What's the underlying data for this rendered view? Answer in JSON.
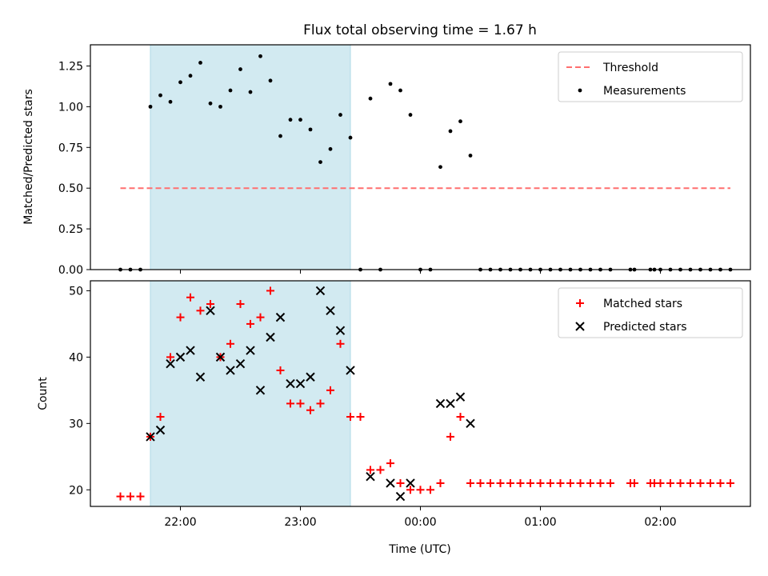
{
  "chart_data": [
    {
      "type": "scatter",
      "title": "Flux total observing time = 1.67 h",
      "xlabel": "",
      "ylabel": "Matched/Predicted stars",
      "ylim": [
        0,
        1.38
      ],
      "xlim": [
        "21:15",
        "02:45"
      ],
      "yticks": [
        "0.00",
        "0.25",
        "0.50",
        "0.75",
        "1.00",
        "1.25"
      ],
      "ytick_values": [
        0,
        0.25,
        0.5,
        0.75,
        1.0,
        1.25
      ],
      "shaded_interval": [
        "21:45",
        "23:25"
      ],
      "shade_color": "#add8e6",
      "legend": "top-right",
      "threshold": {
        "name": "Threshold",
        "value": 0.5,
        "x": [
          "21:30",
          "02:35"
        ],
        "color": "#ff6f6f"
      },
      "series": [
        {
          "name": "Measurements",
          "color": "#000000",
          "points": [
            [
              "21:30",
              0
            ],
            [
              "21:35",
              0
            ],
            [
              "21:40",
              0
            ],
            [
              "21:45",
              1.0
            ],
            [
              "21:50",
              1.07
            ],
            [
              "21:55",
              1.03
            ],
            [
              "22:00",
              1.15
            ],
            [
              "22:05",
              1.19
            ],
            [
              "22:10",
              1.27
            ],
            [
              "22:15",
              1.02
            ],
            [
              "22:20",
              1.0
            ],
            [
              "22:25",
              1.1
            ],
            [
              "22:30",
              1.23
            ],
            [
              "22:35",
              1.09
            ],
            [
              "22:40",
              1.31
            ],
            [
              "22:45",
              1.16
            ],
            [
              "22:50",
              0.82
            ],
            [
              "22:55",
              0.92
            ],
            [
              "23:00",
              0.92
            ],
            [
              "23:05",
              0.86
            ],
            [
              "23:10",
              0.66
            ],
            [
              "23:15",
              0.74
            ],
            [
              "23:20",
              0.95
            ],
            [
              "23:25",
              0.81
            ],
            [
              "23:30",
              0
            ],
            [
              "23:35",
              1.05
            ],
            [
              "23:40",
              0
            ],
            [
              "23:45",
              1.14
            ],
            [
              "23:50",
              1.1
            ],
            [
              "23:55",
              0.95
            ],
            [
              "00:00",
              0
            ],
            [
              "00:05",
              0
            ],
            [
              "00:10",
              0.63
            ],
            [
              "00:15",
              0.85
            ],
            [
              "00:20",
              0.91
            ],
            [
              "00:25",
              0.7
            ],
            [
              "00:30",
              0
            ],
            [
              "00:35",
              0
            ],
            [
              "00:40",
              0
            ],
            [
              "00:45",
              0
            ],
            [
              "00:50",
              0
            ],
            [
              "00:55",
              0
            ],
            [
              "01:00",
              0
            ],
            [
              "01:05",
              0
            ],
            [
              "01:10",
              0
            ],
            [
              "01:15",
              0
            ],
            [
              "01:20",
              0
            ],
            [
              "01:25",
              0
            ],
            [
              "01:30",
              0
            ],
            [
              "01:35",
              0
            ],
            [
              "01:45",
              0
            ],
            [
              "01:47",
              0
            ],
            [
              "01:55",
              0
            ],
            [
              "01:57",
              0
            ],
            [
              "02:00",
              0
            ],
            [
              "02:05",
              0
            ],
            [
              "02:10",
              0
            ],
            [
              "02:15",
              0
            ],
            [
              "02:20",
              0
            ],
            [
              "02:25",
              0
            ],
            [
              "02:30",
              0
            ],
            [
              "02:35",
              0
            ]
          ]
        }
      ]
    },
    {
      "type": "scatter",
      "title": "",
      "xlabel": "Time (UTC)",
      "ylabel": "Count",
      "ylim": [
        17.5,
        51.5
      ],
      "xlim": [
        "21:15",
        "02:45"
      ],
      "yticks": [
        "20",
        "30",
        "40",
        "50"
      ],
      "ytick_values": [
        20,
        30,
        40,
        50
      ],
      "xticks": [
        "22:00",
        "23:00",
        "00:00",
        "01:00",
        "02:00"
      ],
      "shaded_interval": [
        "21:45",
        "23:25"
      ],
      "shade_color": "#add8e6",
      "legend": "top-right",
      "series": [
        {
          "name": "Matched stars",
          "marker": "+",
          "color": "#ff0000",
          "points": [
            [
              "21:30",
              19
            ],
            [
              "21:35",
              19
            ],
            [
              "21:40",
              19
            ],
            [
              "21:45",
              28
            ],
            [
              "21:50",
              31
            ],
            [
              "21:55",
              40
            ],
            [
              "22:00",
              46
            ],
            [
              "22:05",
              49
            ],
            [
              "22:10",
              47
            ],
            [
              "22:15",
              48
            ],
            [
              "22:20",
              40
            ],
            [
              "22:25",
              42
            ],
            [
              "22:30",
              48
            ],
            [
              "22:35",
              45
            ],
            [
              "22:40",
              46
            ],
            [
              "22:45",
              50
            ],
            [
              "22:50",
              38
            ],
            [
              "22:55",
              33
            ],
            [
              "23:00",
              33
            ],
            [
              "23:05",
              32
            ],
            [
              "23:10",
              33
            ],
            [
              "23:15",
              35
            ],
            [
              "23:20",
              42
            ],
            [
              "23:25",
              31
            ],
            [
              "23:30",
              31
            ],
            [
              "23:35",
              23
            ],
            [
              "23:40",
              23
            ],
            [
              "23:45",
              24
            ],
            [
              "23:50",
              21
            ],
            [
              "23:55",
              20
            ],
            [
              "00:00",
              20
            ],
            [
              "00:05",
              20
            ],
            [
              "00:10",
              21
            ],
            [
              "00:15",
              28
            ],
            [
              "00:20",
              31
            ],
            [
              "00:25",
              21
            ],
            [
              "00:30",
              21
            ],
            [
              "00:35",
              21
            ],
            [
              "00:40",
              21
            ],
            [
              "00:45",
              21
            ],
            [
              "00:50",
              21
            ],
            [
              "00:55",
              21
            ],
            [
              "01:00",
              21
            ],
            [
              "01:05",
              21
            ],
            [
              "01:10",
              21
            ],
            [
              "01:15",
              21
            ],
            [
              "01:20",
              21
            ],
            [
              "01:25",
              21
            ],
            [
              "01:30",
              21
            ],
            [
              "01:35",
              21
            ],
            [
              "01:45",
              21
            ],
            [
              "01:47",
              21
            ],
            [
              "01:55",
              21
            ],
            [
              "01:57",
              21
            ],
            [
              "02:00",
              21
            ],
            [
              "02:05",
              21
            ],
            [
              "02:10",
              21
            ],
            [
              "02:15",
              21
            ],
            [
              "02:20",
              21
            ],
            [
              "02:25",
              21
            ],
            [
              "02:30",
              21
            ],
            [
              "02:35",
              21
            ]
          ]
        },
        {
          "name": "Predicted stars",
          "marker": "x",
          "color": "#000000",
          "points": [
            [
              "21:45",
              28
            ],
            [
              "21:50",
              29
            ],
            [
              "21:55",
              39
            ],
            [
              "22:00",
              40
            ],
            [
              "22:05",
              41
            ],
            [
              "22:10",
              37
            ],
            [
              "22:15",
              47
            ],
            [
              "22:20",
              40
            ],
            [
              "22:25",
              38
            ],
            [
              "22:30",
              39
            ],
            [
              "22:35",
              41
            ],
            [
              "22:40",
              35
            ],
            [
              "22:45",
              43
            ],
            [
              "22:50",
              46
            ],
            [
              "22:55",
              36
            ],
            [
              "23:00",
              36
            ],
            [
              "23:05",
              37
            ],
            [
              "23:10",
              50
            ],
            [
              "23:15",
              47
            ],
            [
              "23:20",
              44
            ],
            [
              "23:25",
              38
            ],
            [
              "23:35",
              22
            ],
            [
              "23:45",
              21
            ],
            [
              "23:50",
              19
            ],
            [
              "23:55",
              21
            ],
            [
              "00:10",
              33
            ],
            [
              "00:15",
              33
            ],
            [
              "00:20",
              34
            ],
            [
              "00:25",
              30
            ]
          ]
        }
      ]
    }
  ]
}
